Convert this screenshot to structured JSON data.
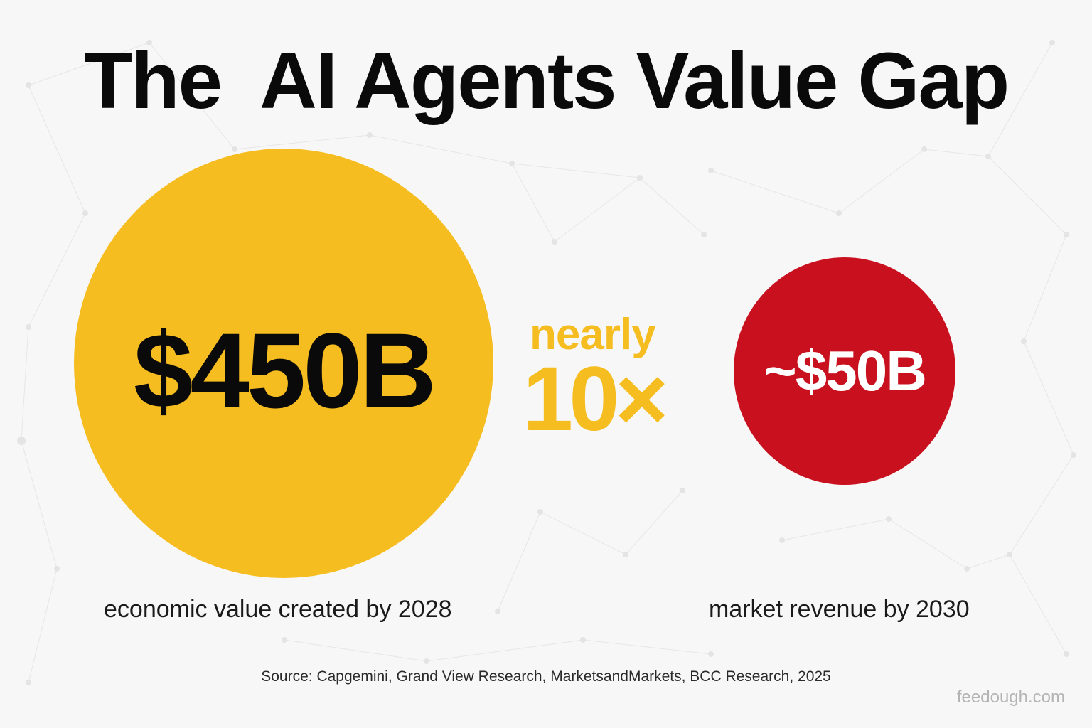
{
  "title": "The  AI Agents Value Gap",
  "left": {
    "value": "$450B",
    "caption": "economic value created by 2028",
    "color": "#f6bd20"
  },
  "comparison": {
    "top": "nearly",
    "bottom": "10×",
    "color": "#f6bd20"
  },
  "right": {
    "value": "~$50B",
    "caption": "market revenue by 2030",
    "color": "#c8101e"
  },
  "source": "Source:  Capgemini, Grand View Research, MarketsandMarkets, BCC Research, 2025",
  "watermark": "feedough.com"
}
